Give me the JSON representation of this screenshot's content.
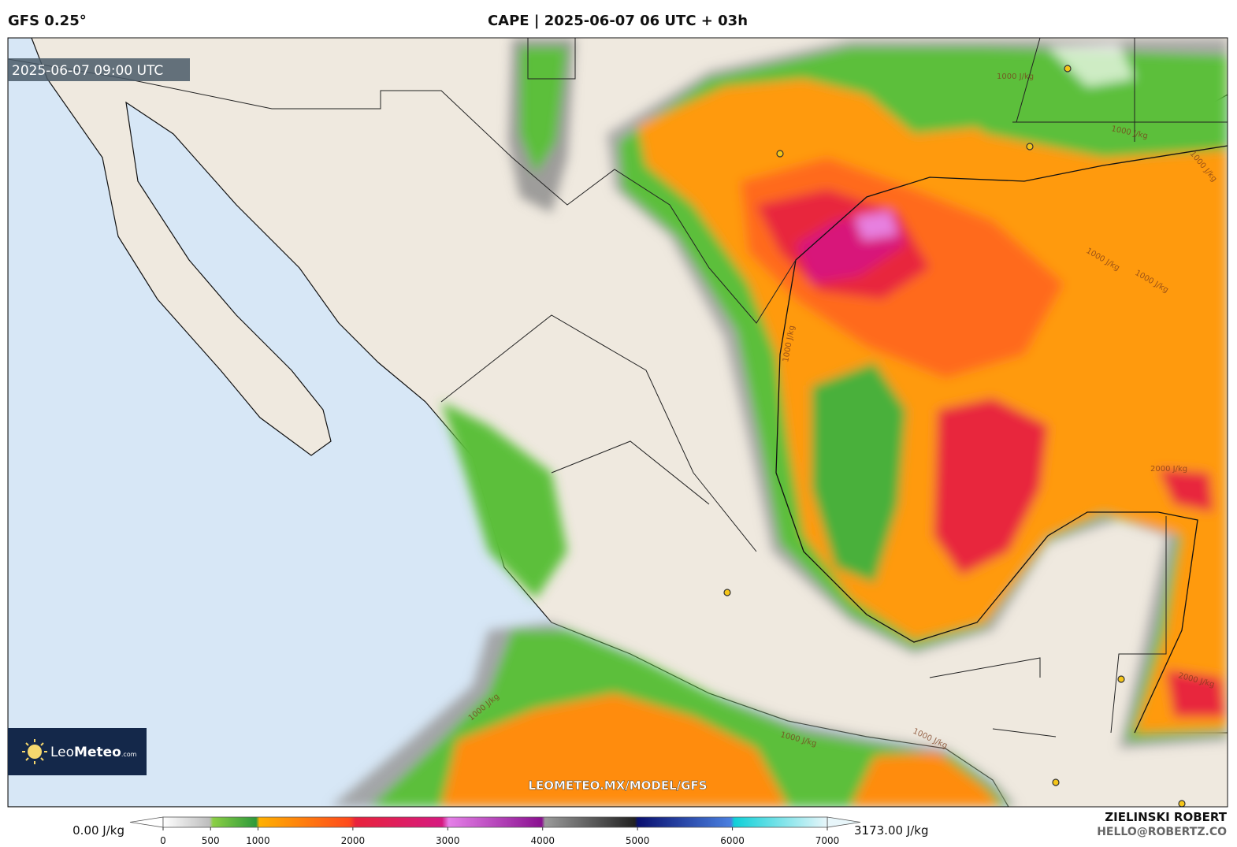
{
  "header": {
    "model": "GFS 0.25°",
    "title": "CAPE | 2025-06-07 06 UTC + 03h"
  },
  "map": {
    "valid_time": "2025-06-07 09:00 UTC",
    "watermark": "LEOMETEO.MX/MODEL/GFS",
    "logo": {
      "name_light": "Leo",
      "name_bold": "Meteo",
      "suffix": ".com"
    },
    "contour_labels": [
      "1000 J/kg",
      "1000 J/kg",
      "1000 J/kg",
      "1000 J/kg",
      "1000 J/kg",
      "2000 J/kg",
      "2000 J/kg",
      "1000 J/kg",
      "1000 J/kg",
      "1000 J/kg",
      "1000 J/kg"
    ]
  },
  "colorbar": {
    "min_label": "0.00 J/kg",
    "max_label": "3173.00 J/kg",
    "range": [
      0,
      7000
    ],
    "ticks": [
      0,
      500,
      1000,
      2000,
      3000,
      4000,
      5000,
      6000,
      7000
    ]
  },
  "credit": {
    "author": "ZIELINSKI ROBERT",
    "email": "HELLO@ROBERTZ.CO"
  }
}
